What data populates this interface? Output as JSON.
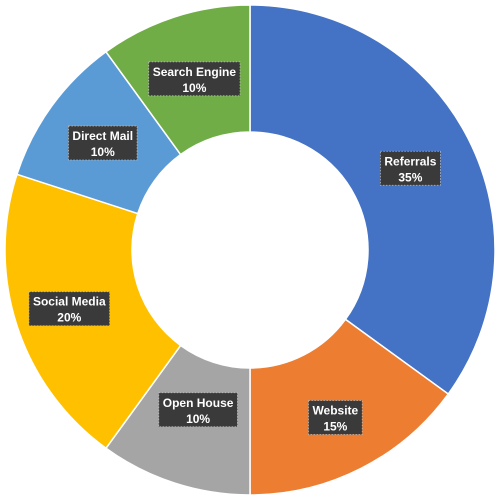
{
  "chart_data": {
    "type": "pie",
    "variant": "donut",
    "title": "",
    "legend": "none",
    "slices": [
      {
        "label": "Referrals",
        "value": 35,
        "display": "35%",
        "color": "#4472C4"
      },
      {
        "label": "Website",
        "value": 15,
        "display": "15%",
        "color": "#ED7D31"
      },
      {
        "label": "Open House",
        "value": 10,
        "display": "10%",
        "color": "#A5A5A5"
      },
      {
        "label": "Social Media",
        "value": 20,
        "display": "20%",
        "color": "#FFC000"
      },
      {
        "label": "Direct Mail",
        "value": 10,
        "display": "10%",
        "color": "#5B9BD5"
      },
      {
        "label": "Search Engine",
        "value": 10,
        "display": "10%",
        "color": "#70AD47"
      }
    ]
  }
}
